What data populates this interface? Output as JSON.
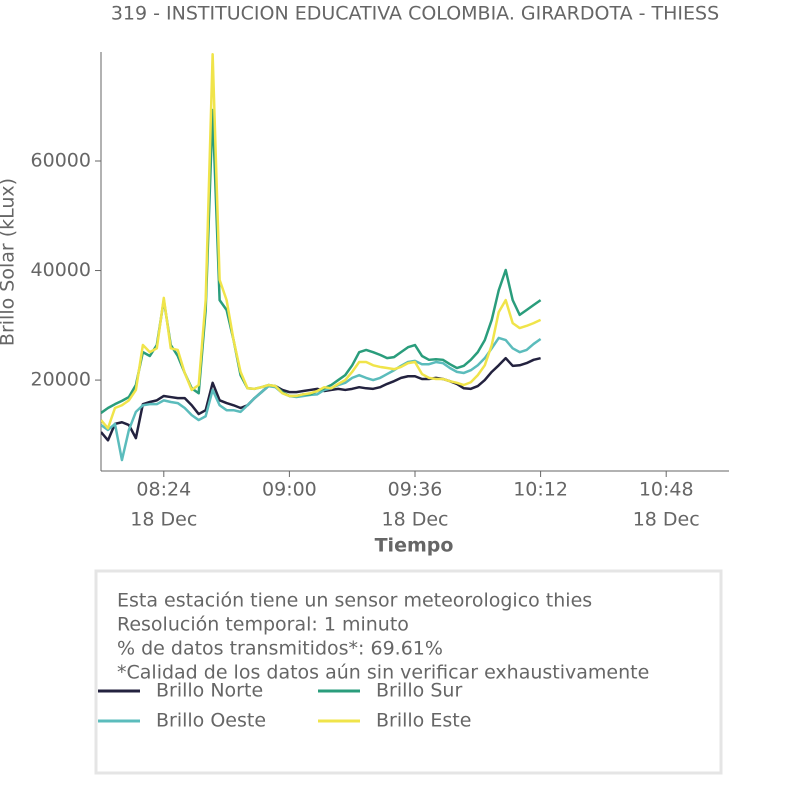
{
  "chart_data": {
    "type": "line",
    "title": "319 - INSTITUCION EDUCATIVA COLOMBIA. GIRARDOTA - THIESS",
    "x_label": "Tiempo",
    "y_label": "Brillo Solar (kLux)",
    "x": [
      "08:06",
      "08:08",
      "08:10",
      "08:12",
      "08:14",
      "08:16",
      "08:18",
      "08:20",
      "08:22",
      "08:24",
      "08:26",
      "08:28",
      "08:30",
      "08:32",
      "08:34",
      "08:36",
      "08:38",
      "08:40",
      "08:42",
      "08:44",
      "08:46",
      "08:48",
      "08:50",
      "08:52",
      "08:54",
      "08:56",
      "08:58",
      "09:00",
      "09:02",
      "09:04",
      "09:06",
      "09:08",
      "09:10",
      "09:12",
      "09:14",
      "09:16",
      "09:18",
      "09:20",
      "09:22",
      "09:24",
      "09:26",
      "09:28",
      "09:30",
      "09:32",
      "09:34",
      "09:36",
      "09:38",
      "09:40",
      "09:42",
      "09:44",
      "09:46",
      "09:48",
      "09:50",
      "09:52",
      "09:54",
      "09:56",
      "09:58",
      "10:00",
      "10:02",
      "10:04",
      "10:06",
      "10:08",
      "10:10",
      "10:12"
    ],
    "series": [
      {
        "name": "Brillo Norte",
        "color": "#23223f",
        "values": [
          10500,
          9000,
          12000,
          12300,
          11800,
          9400,
          15600,
          16000,
          16300,
          17100,
          16900,
          16700,
          16700,
          15400,
          13800,
          14500,
          19500,
          16300,
          15800,
          15400,
          14900,
          15400,
          16700,
          17800,
          18900,
          18900,
          18200,
          17800,
          17800,
          18000,
          18200,
          18400,
          18000,
          18200,
          18400,
          18200,
          18400,
          18700,
          18500,
          18400,
          18700,
          19300,
          19800,
          20400,
          20700,
          20700,
          20200,
          20200,
          20400,
          20200,
          19800,
          19300,
          18500,
          18400,
          18900,
          20000,
          21500,
          22700,
          24000,
          22600,
          22700,
          23100,
          23700,
          24000
        ]
      },
      {
        "name": "Brillo Oeste",
        "color": "#5bbcbc",
        "values": [
          11800,
          10900,
          12000,
          5400,
          10900,
          14200,
          15400,
          15600,
          15600,
          16300,
          16000,
          15800,
          14900,
          13600,
          12700,
          13400,
          18200,
          15400,
          14500,
          14500,
          14200,
          15400,
          16700,
          17800,
          18900,
          18700,
          17600,
          17100,
          16900,
          17100,
          17300,
          17400,
          18200,
          18500,
          19100,
          19500,
          20400,
          20900,
          20400,
          20000,
          20400,
          21100,
          21800,
          22600,
          23300,
          23500,
          22900,
          22900,
          23300,
          23100,
          22200,
          21500,
          21300,
          21800,
          22700,
          24000,
          25800,
          27700,
          27300,
          25800,
          25100,
          25500,
          26600,
          27500
        ]
      },
      {
        "name": "Brillo Sur",
        "color": "#2a9d7c",
        "values": [
          14000,
          14900,
          15600,
          16200,
          16900,
          19100,
          25100,
          24400,
          26400,
          34600,
          26400,
          24400,
          21300,
          18500,
          17600,
          32800,
          69300,
          34600,
          32800,
          27300,
          20900,
          18500,
          18400,
          18700,
          19100,
          18900,
          17800,
          17100,
          17100,
          17400,
          17400,
          18000,
          18500,
          19100,
          20000,
          20900,
          22700,
          25100,
          25500,
          25100,
          24600,
          24000,
          24200,
          25100,
          26000,
          26400,
          24400,
          23700,
          23800,
          23700,
          22900,
          22200,
          22600,
          23700,
          25100,
          27300,
          31000,
          36400,
          40100,
          34600,
          31900,
          32800,
          33700,
          34600
        ]
      },
      {
        "name": "Brillo Este",
        "color": "#f0e44a",
        "values": [
          12700,
          11200,
          14900,
          15400,
          16300,
          18200,
          26400,
          25100,
          25800,
          35000,
          25800,
          25500,
          21300,
          18200,
          19100,
          34600,
          79500,
          38300,
          34600,
          27300,
          21500,
          18500,
          18400,
          18700,
          19100,
          18900,
          17600,
          17100,
          17100,
          17400,
          17600,
          18000,
          18700,
          18500,
          19300,
          20000,
          21500,
          23300,
          23300,
          22700,
          22400,
          22200,
          22000,
          22400,
          23100,
          23300,
          21100,
          20400,
          20200,
          20200,
          19800,
          19500,
          19100,
          19600,
          20900,
          22700,
          26400,
          32400,
          34600,
          30400,
          29500,
          29900,
          30400,
          31000
        ]
      }
    ],
    "xlim": [
      "08:06",
      "11:06"
    ],
    "xticks": [
      "08:24",
      "09:00",
      "09:36",
      "10:12",
      "10:48"
    ],
    "xtick_dates": [
      "18 Dec",
      null,
      "18 Dec",
      null,
      "18 Dec"
    ],
    "ylim": [
      3400,
      79900
    ],
    "yticks": [
      20000,
      40000,
      60000
    ],
    "grid": false
  },
  "info": {
    "lines": [
      "Esta estación tiene un sensor meteorologico thies",
      "Resolución temporal: 1 minuto",
      "% de datos transmitidos*: 69.61%",
      "*Calidad de los datos aún sin verificar exhaustivamente"
    ]
  }
}
